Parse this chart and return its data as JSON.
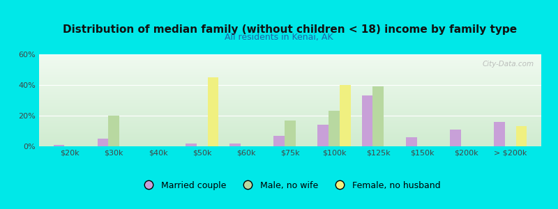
{
  "title": "Distribution of median family (without children < 18) income by family type",
  "subtitle": "All residents in Kenai, AK",
  "categories": [
    "$20k",
    "$30k",
    "$40k",
    "$50k",
    "$60k",
    "$75k",
    "$100k",
    "$125k",
    "$150k",
    "$200k",
    "> $200k"
  ],
  "married_couple": [
    1,
    5,
    0,
    2,
    2,
    7,
    14,
    33,
    6,
    11,
    16
  ],
  "male_no_wife": [
    0,
    20,
    0,
    0,
    0,
    17,
    23,
    39,
    0,
    0,
    0
  ],
  "female_no_husband": [
    0,
    0,
    0,
    45,
    0,
    0,
    40,
    0,
    0,
    0,
    13
  ],
  "married_color": "#c8a0d8",
  "male_color": "#b8d8a0",
  "female_color": "#f0f080",
  "bg_color": "#00e8e8",
  "plot_bg_top": "#f0faf0",
  "plot_bg_bottom": "#d0ecd0",
  "ylim": [
    0,
    60
  ],
  "yticks": [
    0,
    20,
    40,
    60
  ],
  "ytick_labels": [
    "0%",
    "20%",
    "40%",
    "60%"
  ],
  "watermark": "City-Data.com",
  "bar_width": 0.25,
  "legend_labels": [
    "Married couple",
    "Male, no wife",
    "Female, no husband"
  ]
}
